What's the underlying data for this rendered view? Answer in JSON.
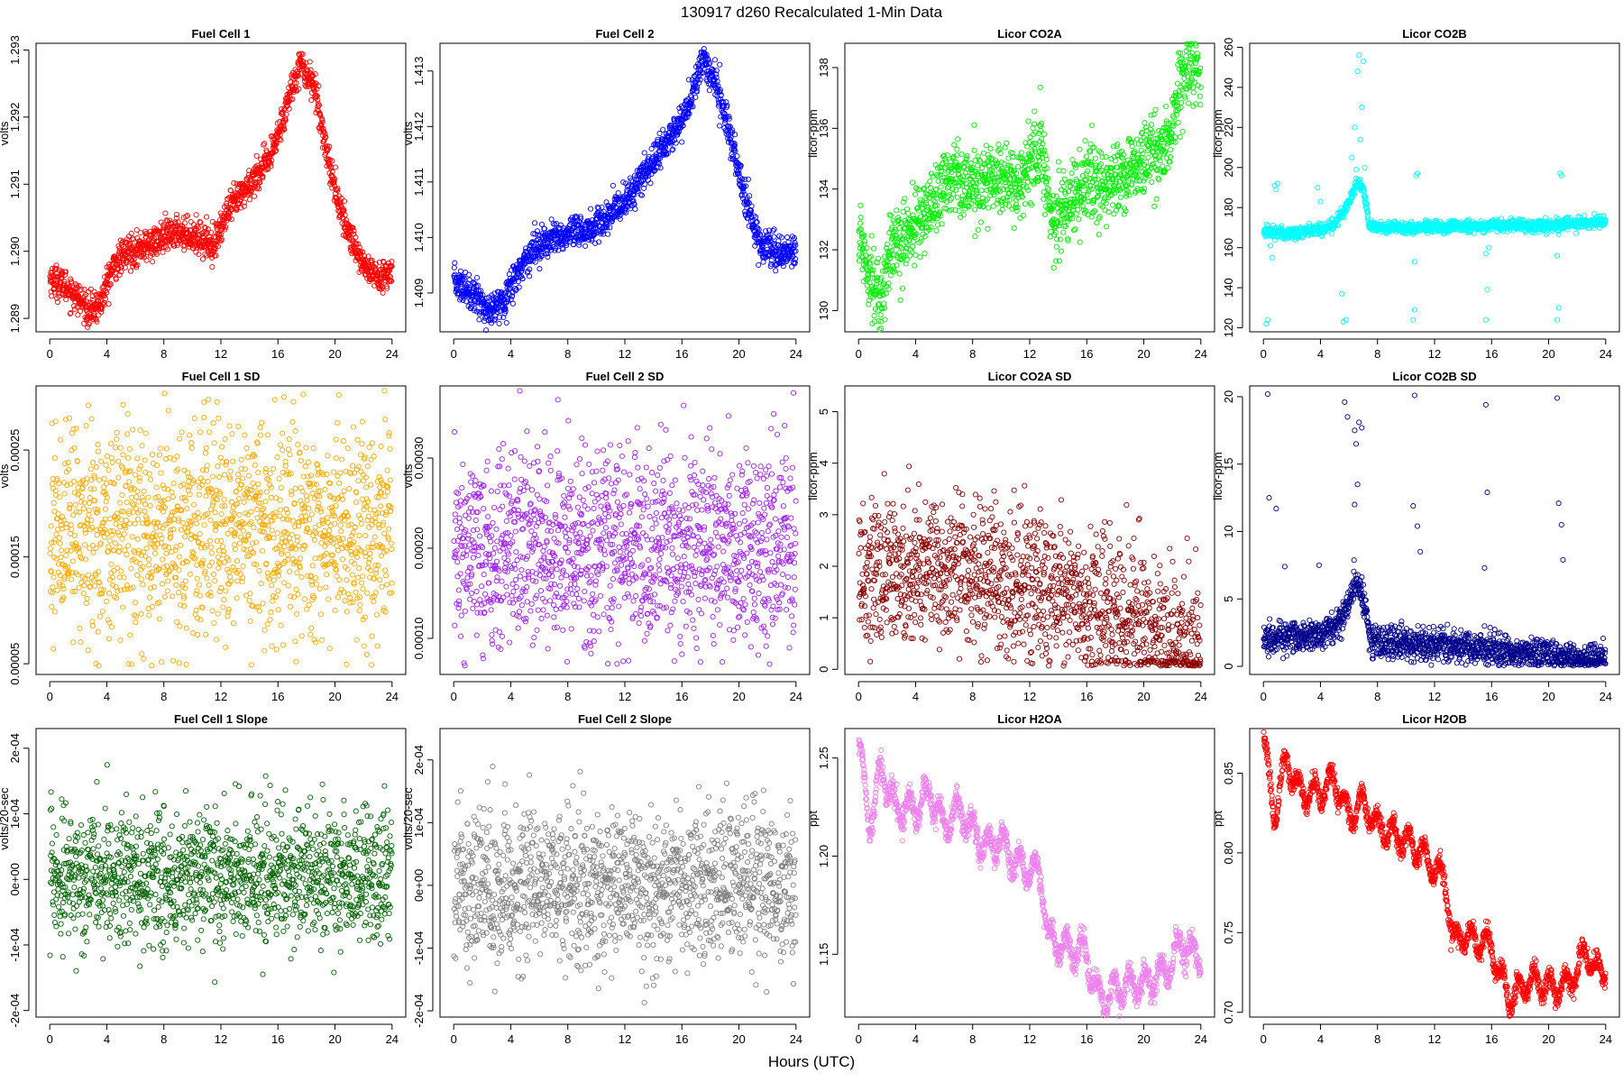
{
  "figure": {
    "title": "130917   d260   Recalculated 1-Min Data",
    "xlabel": "Hours (UTC)"
  },
  "chart_data": [
    {
      "id": "fc1",
      "type": "scatter",
      "title": "Fuel Cell 1",
      "ylabel": "volts",
      "color": "#ff0000",
      "xlim": [
        0,
        24
      ],
      "xticks": [
        0,
        4,
        8,
        12,
        16,
        20,
        24
      ],
      "ylim": [
        1.2888,
        1.2931
      ],
      "yticks": [
        1.289,
        1.29,
        1.291,
        1.292,
        1.293
      ],
      "ytick_labels": [
        "1.289",
        "1.290",
        "1.291",
        "1.292",
        "1.293"
      ],
      "trend": [
        [
          0,
          1.2896
        ],
        [
          1,
          1.2895
        ],
        [
          2,
          1.2893
        ],
        [
          2.7,
          1.2891
        ],
        [
          3.5,
          1.2892
        ],
        [
          4.5,
          1.2898
        ],
        [
          5.5,
          1.29
        ],
        [
          7,
          1.2901
        ],
        [
          9,
          1.2903
        ],
        [
          10.5,
          1.2902
        ],
        [
          11.5,
          1.2901
        ],
        [
          12.5,
          1.2906
        ],
        [
          14,
          1.291
        ],
        [
          15.5,
          1.2914
        ],
        [
          16.5,
          1.2921
        ],
        [
          17.5,
          1.2928
        ],
        [
          18.5,
          1.2925
        ],
        [
          19.5,
          1.2914
        ],
        [
          20.5,
          1.2905
        ],
        [
          22,
          1.2898
        ],
        [
          23,
          1.2896
        ],
        [
          24,
          1.2897
        ]
      ],
      "noise": 0.00012,
      "step": 0.016667
    },
    {
      "id": "fc2",
      "type": "scatter",
      "title": "Fuel Cell 2",
      "ylabel": "volts",
      "color": "#0000ff",
      "xlim": [
        0,
        24
      ],
      "xticks": [
        0,
        4,
        8,
        12,
        16,
        20,
        24
      ],
      "ylim": [
        1.4083,
        1.4135
      ],
      "yticks": [
        1.409,
        1.41,
        1.411,
        1.412,
        1.413
      ],
      "ytick_labels": [
        "1.409",
        "1.410",
        "1.411",
        "1.412",
        "1.413"
      ],
      "trend": [
        [
          0,
          1.4092
        ],
        [
          1.5,
          1.409
        ],
        [
          2.5,
          1.4086
        ],
        [
          3.5,
          1.4089
        ],
        [
          5,
          1.4096
        ],
        [
          6,
          1.4099
        ],
        [
          7.5,
          1.41
        ],
        [
          9,
          1.4101
        ],
        [
          10,
          1.4102
        ],
        [
          11,
          1.4104
        ],
        [
          12.5,
          1.4108
        ],
        [
          14,
          1.4114
        ],
        [
          15.5,
          1.4119
        ],
        [
          16.5,
          1.4124
        ],
        [
          17.5,
          1.4132
        ],
        [
          18.5,
          1.4127
        ],
        [
          19.5,
          1.4117
        ],
        [
          20.5,
          1.4106
        ],
        [
          21.5,
          1.4099
        ],
        [
          23,
          1.4097
        ],
        [
          24,
          1.4098
        ]
      ],
      "noise": 0.00015,
      "step": 0.016667
    },
    {
      "id": "co2a",
      "type": "scatter",
      "title": "Licor CO2A",
      "ylabel": "licor-ppm",
      "color": "#00ee00",
      "xlim": [
        0,
        24
      ],
      "xticks": [
        0,
        4,
        8,
        12,
        16,
        20,
        24
      ],
      "ylim": [
        129.3,
        138.8
      ],
      "yticks": [
        130,
        132,
        134,
        136,
        138
      ],
      "ytick_labels": [
        "130",
        "132",
        "134",
        "136",
        "138"
      ],
      "trend": [
        [
          0,
          132.5
        ],
        [
          1,
          131.0
        ],
        [
          1.5,
          130.2
        ],
        [
          2.2,
          132.0
        ],
        [
          3,
          132.3
        ],
        [
          4,
          132.8
        ],
        [
          5,
          133.4
        ],
        [
          6,
          134.2
        ],
        [
          7,
          134.5
        ],
        [
          8,
          134.0
        ],
        [
          9,
          134.3
        ],
        [
          10,
          134.5
        ],
        [
          11,
          134.0
        ],
        [
          12,
          134.8
        ],
        [
          12.8,
          135.5
        ],
        [
          13.5,
          133.0
        ],
        [
          14.2,
          133.2
        ],
        [
          15,
          133.8
        ],
        [
          16,
          134.2
        ],
        [
          17,
          134.0
        ],
        [
          18,
          134.3
        ],
        [
          19,
          134.6
        ],
        [
          20,
          134.9
        ],
        [
          21,
          135.2
        ],
        [
          21.8,
          135.5
        ],
        [
          22.5,
          137.5
        ],
        [
          23.2,
          137.8
        ],
        [
          24,
          138.0
        ]
      ],
      "noise": 0.6,
      "step": 0.016667
    },
    {
      "id": "co2b",
      "type": "scatter",
      "title": "Licor CO2B",
      "ylabel": "licor-ppm",
      "color": "#00ffff",
      "xlim": [
        0,
        24
      ],
      "xticks": [
        0,
        4,
        8,
        12,
        16,
        20,
        24
      ],
      "ylim": [
        118,
        262
      ],
      "yticks": [
        120,
        140,
        160,
        180,
        200,
        220,
        240,
        260
      ],
      "ytick_labels": [
        "120",
        "140",
        "160",
        "180",
        "200",
        "220",
        "240",
        "260"
      ],
      "trend": [
        [
          0,
          168
        ],
        [
          2,
          167
        ],
        [
          4,
          169
        ],
        [
          5,
          172
        ],
        [
          5.8,
          180
        ],
        [
          6.5,
          192
        ],
        [
          7,
          190
        ],
        [
          7.4,
          172
        ],
        [
          8,
          170
        ],
        [
          12,
          170
        ],
        [
          16,
          171
        ],
        [
          20,
          171
        ],
        [
          24,
          173
        ]
      ],
      "noise": 1.5,
      "step": 0.016667,
      "points": [
        [
          0.2,
          122
        ],
        [
          0.3,
          124
        ],
        [
          0.5,
          161
        ],
        [
          0.8,
          191
        ],
        [
          0.9,
          189
        ],
        [
          1.0,
          192
        ],
        [
          0.6,
          155
        ],
        [
          3.2,
          172
        ],
        [
          3.8,
          190
        ],
        [
          4.0,
          183
        ],
        [
          5.5,
          137
        ],
        [
          5.6,
          123
        ],
        [
          5.8,
          124
        ],
        [
          6.2,
          205
        ],
        [
          6.4,
          220
        ],
        [
          6.6,
          248
        ],
        [
          6.7,
          256
        ],
        [
          6.8,
          214
        ],
        [
          7.0,
          253
        ],
        [
          6.9,
          230
        ],
        [
          6.5,
          199
        ],
        [
          7.1,
          200
        ],
        [
          10.5,
          124
        ],
        [
          10.6,
          129
        ],
        [
          10.7,
          196
        ],
        [
          10.8,
          197
        ],
        [
          10.6,
          153
        ],
        [
          15.6,
          124
        ],
        [
          15.7,
          139
        ],
        [
          15.6,
          157
        ],
        [
          15.8,
          160
        ],
        [
          20.6,
          124
        ],
        [
          20.7,
          130
        ],
        [
          20.8,
          197
        ],
        [
          20.9,
          196
        ],
        [
          20.6,
          156
        ]
      ]
    },
    {
      "id": "fc1sd",
      "type": "scatter",
      "title": "Fuel Cell 1 SD",
      "ylabel": "volts",
      "color": "#ffaa00",
      "xlim": [
        0,
        24
      ],
      "xticks": [
        0,
        4,
        8,
        12,
        16,
        20,
        24
      ],
      "ylim": [
        4e-05,
        0.00031
      ],
      "yticks": [
        5e-05,
        0.00015,
        0.00025
      ],
      "ytick_labels": [
        "0.00005",
        "0.00015",
        "0.00025"
      ],
      "trend": [
        [
          0,
          0.000175
        ],
        [
          12,
          0.000175
        ],
        [
          24,
          0.000175
        ]
      ],
      "noise": 5e-05,
      "step": 0.016667
    },
    {
      "id": "fc2sd",
      "type": "scatter",
      "title": "Fuel Cell 2 SD",
      "ylabel": "volts",
      "color": "#a020f0",
      "xlim": [
        0,
        24
      ],
      "xticks": [
        0,
        4,
        8,
        12,
        16,
        20,
        24
      ],
      "ylim": [
        6e-05,
        0.00038
      ],
      "yticks": [
        0.0001,
        0.0002,
        0.0003
      ],
      "ytick_labels": [
        "0.00010",
        "0.00020",
        "0.00030"
      ],
      "trend": [
        [
          0,
          0.0002
        ],
        [
          12,
          0.0002
        ],
        [
          24,
          0.0002
        ]
      ],
      "noise": 5.5e-05,
      "step": 0.016667
    },
    {
      "id": "co2asd",
      "type": "scatter",
      "title": "Licor CO2A SD",
      "ylabel": "licor-ppm",
      "color": "#8b0000",
      "xlim": [
        0,
        24
      ],
      "xticks": [
        0,
        4,
        8,
        12,
        16,
        20,
        24
      ],
      "ylim": [
        -0.1,
        5.5
      ],
      "yticks": [
        0,
        1,
        2,
        3,
        4,
        5
      ],
      "ytick_labels": [
        "0",
        "1",
        "2",
        "3",
        "4",
        "5"
      ],
      "trend": [
        [
          0,
          2.0
        ],
        [
          8,
          1.8
        ],
        [
          14,
          1.5
        ],
        [
          18,
          1.0
        ],
        [
          20,
          0.8
        ],
        [
          21.5,
          0.5
        ],
        [
          24,
          0.4
        ]
      ],
      "noise": 0.7,
      "step": 0.016667
    },
    {
      "id": "co2bsd",
      "type": "scatter",
      "title": "Licor CO2B SD",
      "ylabel": "licor-ppm",
      "color": "#00008b",
      "xlim": [
        0,
        24
      ],
      "xticks": [
        0,
        4,
        8,
        12,
        16,
        20,
        24
      ],
      "ylim": [
        -0.6,
        20.8
      ],
      "yticks": [
        0,
        5,
        10,
        15,
        20
      ],
      "ytick_labels": [
        "0",
        "5",
        "10",
        "15",
        "20"
      ],
      "trend": [
        [
          0,
          2.0
        ],
        [
          4,
          2.3
        ],
        [
          5.5,
          3.5
        ],
        [
          6.5,
          6.5
        ],
        [
          7.2,
          4.0
        ],
        [
          7.6,
          1.8
        ],
        [
          12,
          1.6
        ],
        [
          16,
          1.2
        ],
        [
          20,
          0.8
        ],
        [
          24,
          0.4
        ]
      ],
      "noise": 0.6,
      "step": 0.016667,
      "points": [
        [
          0.3,
          20.2
        ],
        [
          0.4,
          12.5
        ],
        [
          0.9,
          11.7
        ],
        [
          1.5,
          7.4
        ],
        [
          3.9,
          7.5
        ],
        [
          5.7,
          19.6
        ],
        [
          5.9,
          18.5
        ],
        [
          6.4,
          17.5
        ],
        [
          6.5,
          16.5
        ],
        [
          6.7,
          18.1
        ],
        [
          6.9,
          17.7
        ],
        [
          6.4,
          12
        ],
        [
          6.6,
          13.5
        ],
        [
          10.5,
          11.9
        ],
        [
          10.6,
          20.1
        ],
        [
          10.8,
          10.4
        ],
        [
          11.0,
          8.5
        ],
        [
          15.5,
          7.3
        ],
        [
          15.6,
          19.4
        ],
        [
          15.7,
          12.9
        ],
        [
          20.6,
          19.9
        ],
        [
          20.7,
          12.1
        ],
        [
          20.9,
          10.5
        ],
        [
          21.0,
          7.9
        ]
      ]
    },
    {
      "id": "fc1slope",
      "type": "scatter",
      "title": "Fuel Cell 1 Slope",
      "ylabel": "volts/20-sec",
      "color": "#006400",
      "xlim": [
        0,
        24
      ],
      "xticks": [
        0,
        4,
        8,
        12,
        16,
        20,
        24
      ],
      "ylim": [
        -0.00021,
        0.00023
      ],
      "yticks": [
        -0.0002,
        -0.0001,
        0,
        0.0001,
        0.0002
      ],
      "ytick_labels": [
        "-2e-04",
        "-1e-04",
        "0e+00",
        "1e-04",
        "2e-04"
      ],
      "trend": [
        [
          0,
          5e-06
        ],
        [
          24,
          5e-06
        ]
      ],
      "noise": 5e-05,
      "step": 0.016667
    },
    {
      "id": "fc2slope",
      "type": "scatter",
      "title": "Fuel Cell 2 Slope",
      "ylabel": "volts/20-sec",
      "color": "#808080",
      "xlim": [
        0,
        24
      ],
      "xticks": [
        0,
        4,
        8,
        12,
        16,
        20,
        24
      ],
      "ylim": [
        -0.00021,
        0.00025
      ],
      "yticks": [
        -0.0002,
        -0.0001,
        0,
        0.0001,
        0.0002
      ],
      "ytick_labels": [
        "-2e-04",
        "-1e-04",
        "0e+00",
        "1e-04",
        "2e-04"
      ],
      "trend": [
        [
          0,
          0.0
        ],
        [
          24,
          0.0
        ]
      ],
      "noise": 6e-05,
      "step": 0.016667
    },
    {
      "id": "h2oa",
      "type": "scatter",
      "title": "Licor H2OA",
      "ylabel": "ppt",
      "color": "#ee82ee",
      "xlim": [
        0,
        24
      ],
      "xticks": [
        0,
        4,
        8,
        12,
        16,
        20,
        24
      ],
      "ylim": [
        1.118,
        1.265
      ],
      "yticks": [
        1.15,
        1.2,
        1.25
      ],
      "ytick_labels": [
        "1.15",
        "1.20",
        "1.25"
      ],
      "trend": [
        [
          0,
          1.257
        ],
        [
          0.8,
          1.215
        ],
        [
          1.6,
          1.245
        ],
        [
          2.5,
          1.225
        ],
        [
          4,
          1.223
        ],
        [
          5,
          1.233
        ],
        [
          6,
          1.215
        ],
        [
          7,
          1.225
        ],
        [
          8,
          1.212
        ],
        [
          9,
          1.205
        ],
        [
          10,
          1.208
        ],
        [
          11,
          1.197
        ],
        [
          12,
          1.193
        ],
        [
          12.8,
          1.19
        ],
        [
          13.3,
          1.158
        ],
        [
          14,
          1.155
        ],
        [
          15,
          1.152
        ],
        [
          16,
          1.15
        ],
        [
          16.6,
          1.133
        ],
        [
          17.2,
          1.125
        ],
        [
          18,
          1.132
        ],
        [
          19,
          1.134
        ],
        [
          20,
          1.136
        ],
        [
          21,
          1.138
        ],
        [
          22,
          1.145
        ],
        [
          22.6,
          1.158
        ],
        [
          23.3,
          1.15
        ],
        [
          24,
          1.15
        ]
      ],
      "noise": 0.003,
      "step": 0.016667,
      "wave": {
        "amp": 0.007,
        "period": 1.1
      }
    },
    {
      "id": "h2ob",
      "type": "scatter",
      "title": "Licor H2OB",
      "ylabel": "ppt",
      "color": "#ff0000",
      "xlim": [
        0,
        24
      ],
      "xticks": [
        0,
        4,
        8,
        12,
        16,
        20,
        24
      ],
      "ylim": [
        0.697,
        0.878
      ],
      "yticks": [
        0.7,
        0.75,
        0.8,
        0.85
      ],
      "ytick_labels": [
        "0.70",
        "0.75",
        "0.80",
        "0.85"
      ],
      "trend": [
        [
          0,
          0.87
        ],
        [
          0.8,
          0.822
        ],
        [
          1.6,
          0.86
        ],
        [
          2.5,
          0.838
        ],
        [
          4,
          0.838
        ],
        [
          5,
          0.845
        ],
        [
          6,
          0.822
        ],
        [
          7,
          0.832
        ],
        [
          8,
          0.817
        ],
        [
          9,
          0.812
        ],
        [
          10,
          0.808
        ],
        [
          11,
          0.8
        ],
        [
          12,
          0.79
        ],
        [
          12.8,
          0.782
        ],
        [
          13.3,
          0.745
        ],
        [
          14,
          0.748
        ],
        [
          15,
          0.745
        ],
        [
          16,
          0.742
        ],
        [
          16.6,
          0.722
        ],
        [
          17.3,
          0.708
        ],
        [
          18,
          0.716
        ],
        [
          19,
          0.72
        ],
        [
          20,
          0.715
        ],
        [
          21,
          0.716
        ],
        [
          22,
          0.725
        ],
        [
          22.6,
          0.74
        ],
        [
          23.3,
          0.725
        ],
        [
          24,
          0.728
        ]
      ],
      "noise": 0.003,
      "step": 0.016667,
      "wave": {
        "amp": 0.008,
        "period": 1.1
      }
    }
  ]
}
